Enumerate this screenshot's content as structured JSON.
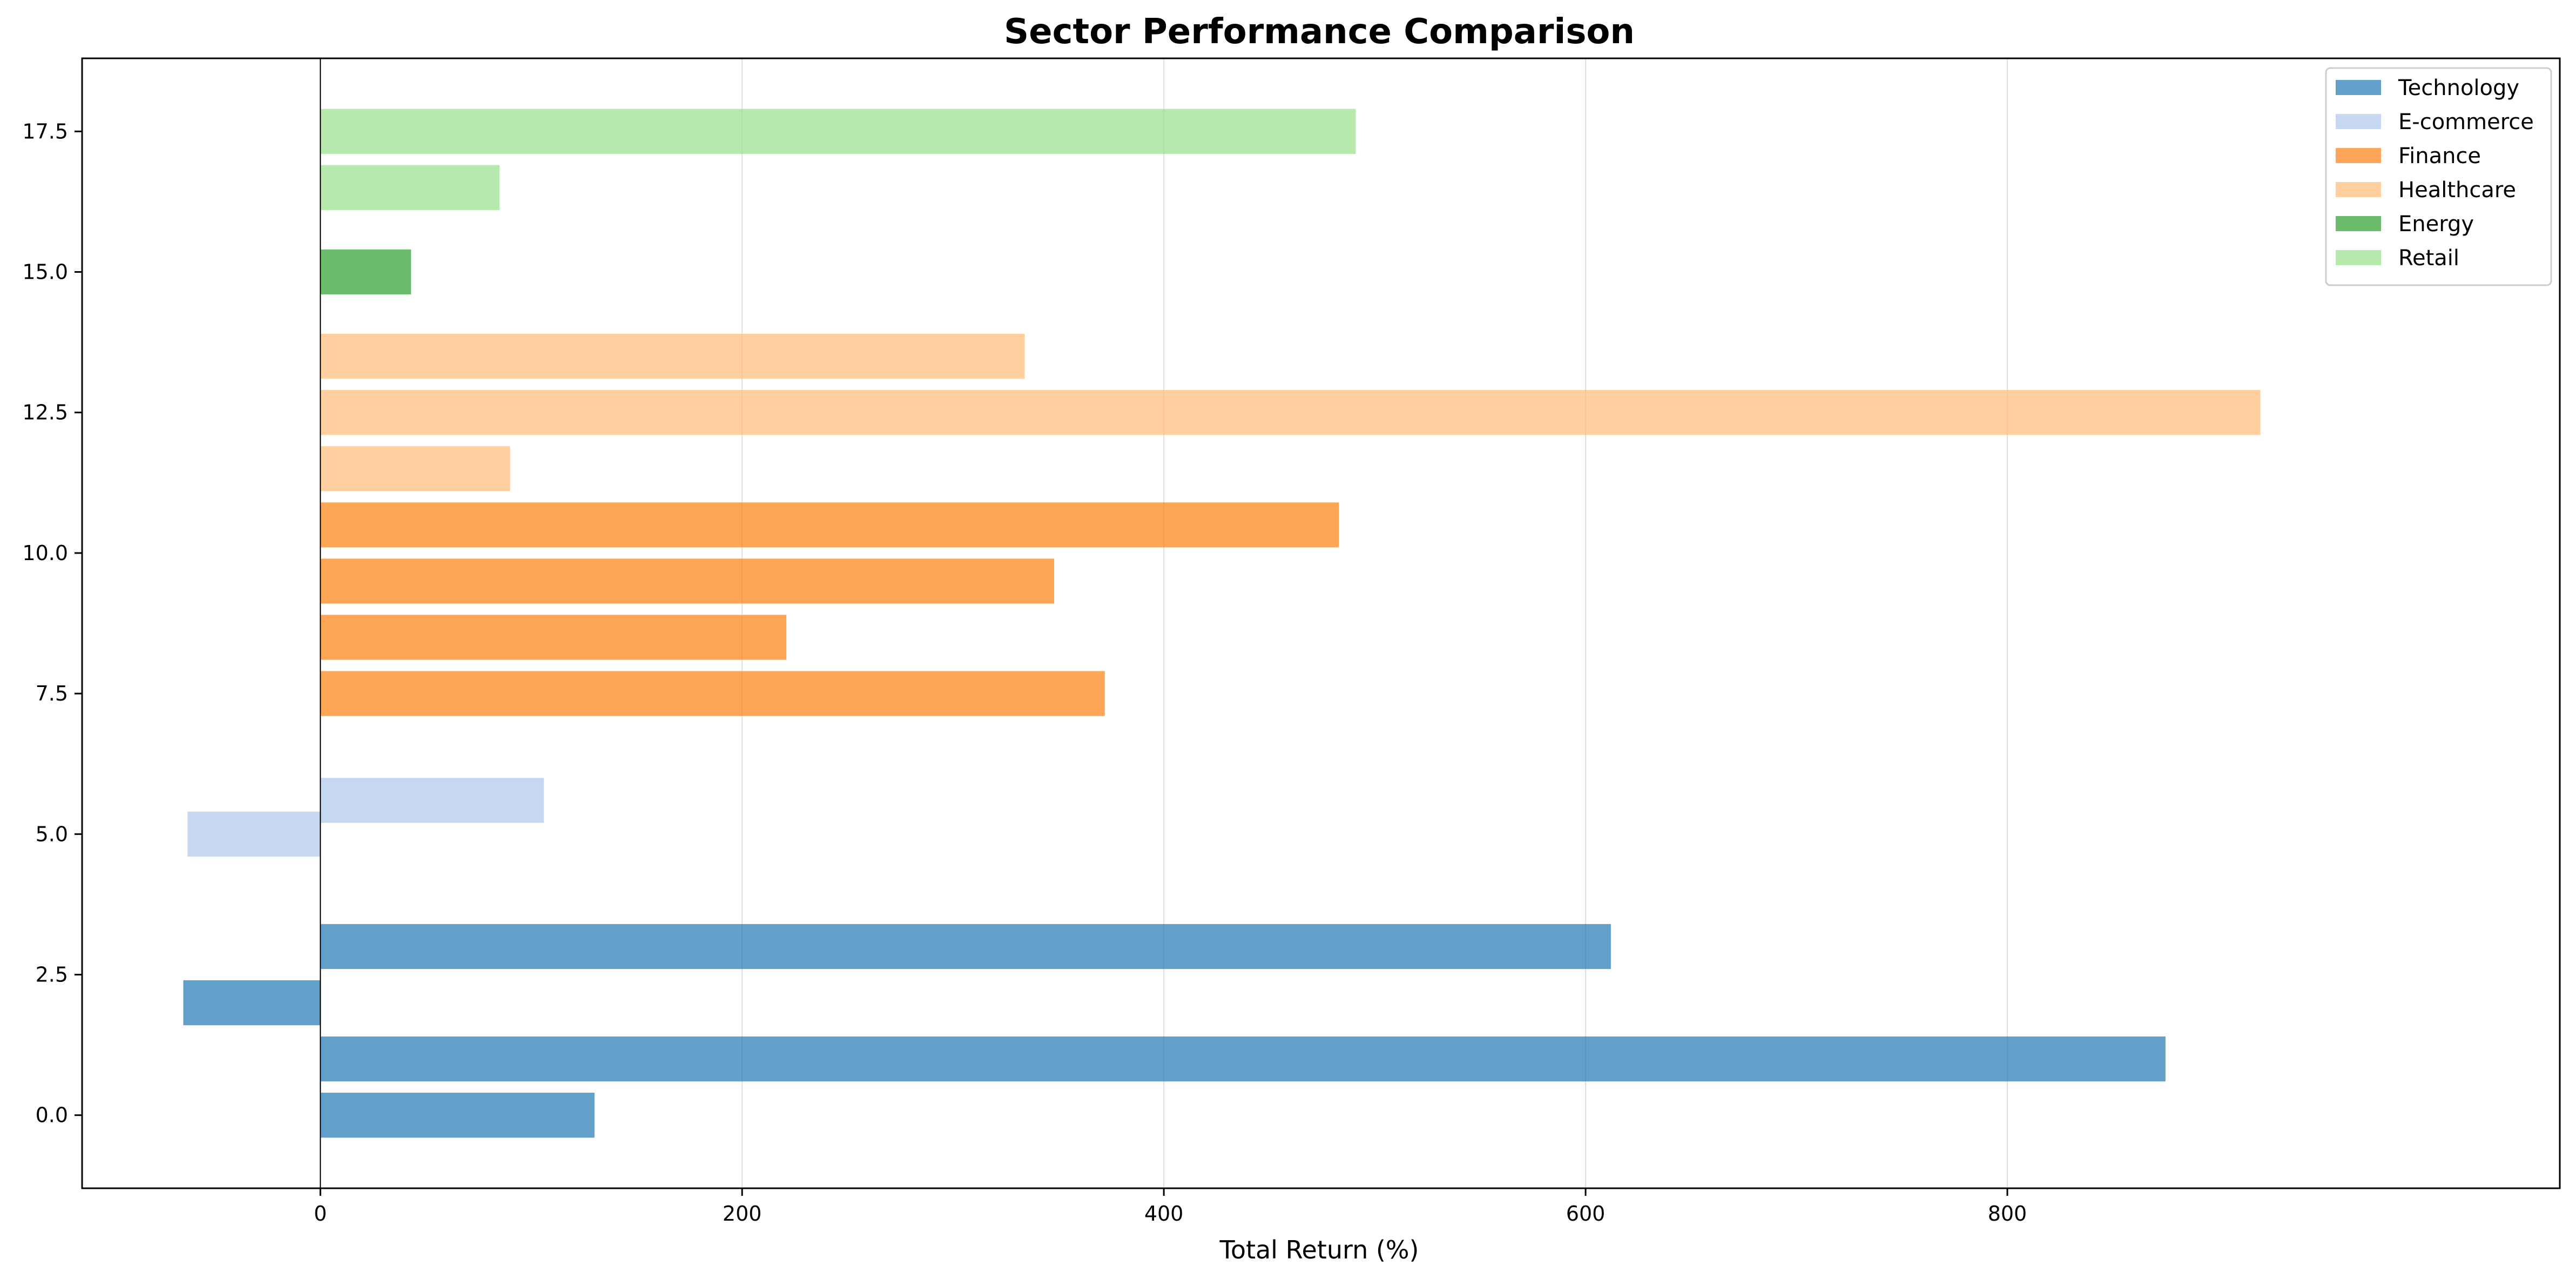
{
  "chart_data": {
    "type": "bar",
    "orientation": "horizontal",
    "title": "Sector Performance Comparison",
    "xlabel": "Total Return (%)",
    "ylabel": "",
    "xlim": [
      -113,
      1062
    ],
    "ylim": [
      -1.3,
      18.8
    ],
    "xticks": [
      0,
      200,
      400,
      600,
      800
    ],
    "yticks": [
      0.0,
      2.5,
      5.0,
      7.5,
      10.0,
      12.5,
      15.0,
      17.5
    ],
    "ytick_labels": [
      "0.0",
      "2.5",
      "5.0",
      "7.5",
      "10.0",
      "12.5",
      "15.0",
      "17.5"
    ],
    "xtick_labels": [
      "0",
      "200",
      "400",
      "600",
      "800"
    ],
    "bar_height": 0.8,
    "grid": "vertical",
    "legend_position": "top-right",
    "series": [
      {
        "name": "Technology",
        "color": "#1f77b4",
        "points": [
          {
            "y": 0,
            "value": 130
          },
          {
            "y": 1,
            "value": 875
          },
          {
            "y": 2,
            "value": -65
          },
          {
            "y": 3,
            "value": 612
          }
        ]
      },
      {
        "name": "E-commerce",
        "color": "#aec7e8",
        "points": [
          {
            "y": 5,
            "value": -63
          },
          {
            "y": 5.6,
            "value": 106
          }
        ]
      },
      {
        "name": "Finance",
        "color": "#ff7f0e",
        "points": [
          {
            "y": 7.5,
            "value": 372
          },
          {
            "y": 8.5,
            "value": 221
          },
          {
            "y": 9.5,
            "value": 348
          },
          {
            "y": 10.5,
            "value": 483
          }
        ]
      },
      {
        "name": "Healthcare",
        "color": "#ffbb78",
        "points": [
          {
            "y": 11.5,
            "value": 90
          },
          {
            "y": 12.5,
            "value": 920
          },
          {
            "y": 13.5,
            "value": 334
          }
        ]
      },
      {
        "name": "Energy",
        "color": "#2ca02c",
        "points": [
          {
            "y": 15,
            "value": 43
          }
        ]
      },
      {
        "name": "Retail",
        "color": "#98df8a",
        "points": [
          {
            "y": 16.5,
            "value": 85
          },
          {
            "y": 17.5,
            "value": 491
          }
        ]
      }
    ]
  }
}
